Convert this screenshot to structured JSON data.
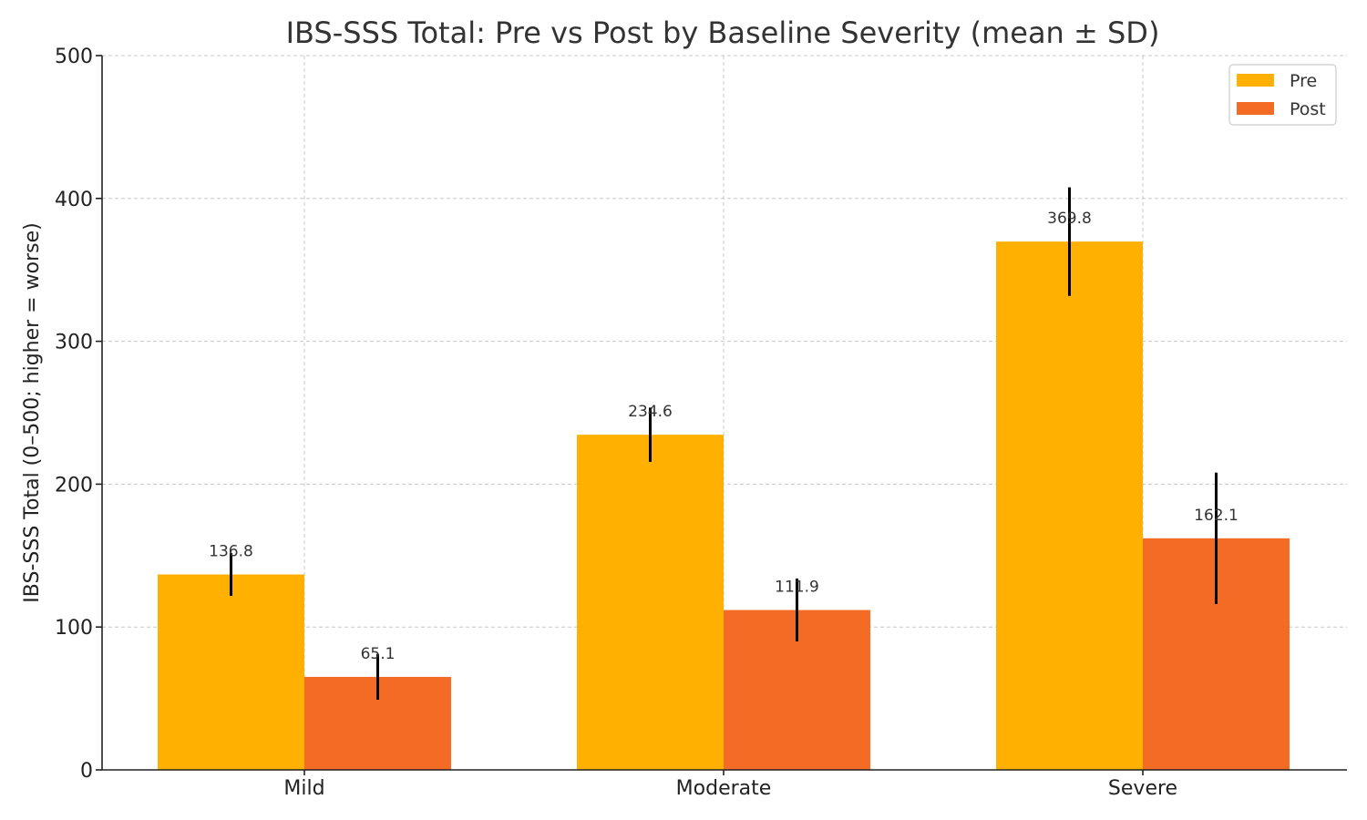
{
  "chart_data": {
    "type": "bar",
    "title": "IBS-SSS Total: Pre vs Post by Baseline Severity (mean ± SD)",
    "xlabel": "",
    "ylabel": "IBS-SSS Total (0–500; higher = worse)",
    "categories": [
      "Mild",
      "Moderate",
      "Severe"
    ],
    "ylim": [
      0,
      500
    ],
    "yticks": [
      0,
      100,
      200,
      300,
      400,
      500
    ],
    "grid": true,
    "legend_position": "top-right",
    "series": [
      {
        "name": "Pre",
        "color": "#FFB000",
        "values": [
          136.8,
          234.6,
          369.8
        ],
        "sd": [
          15,
          19,
          38
        ],
        "labels": [
          "136.8",
          "234.6",
          "369.8"
        ]
      },
      {
        "name": "Post",
        "color": "#F36B24",
        "values": [
          65.1,
          111.9,
          162.1
        ],
        "sd": [
          16,
          22,
          46
        ],
        "labels": [
          "65.1",
          "111.9",
          "162.1"
        ]
      }
    ]
  }
}
